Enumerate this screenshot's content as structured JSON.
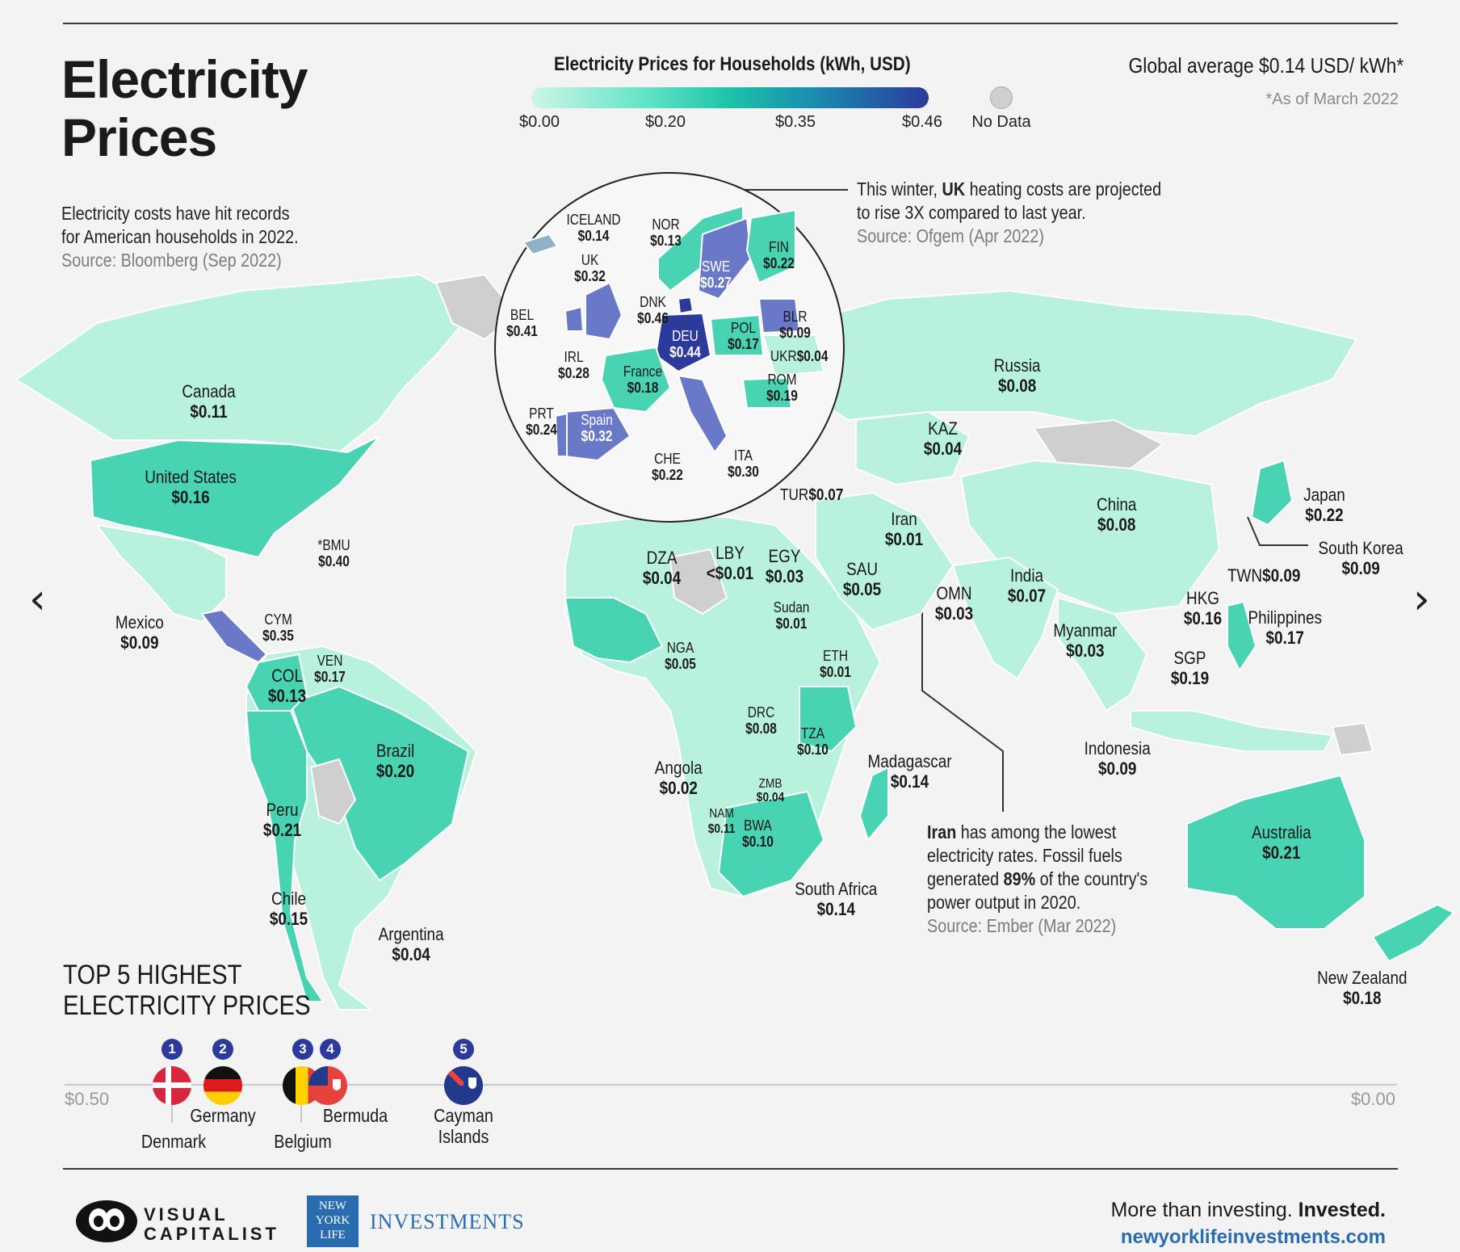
{
  "title": "Electricity Prices",
  "legend": {
    "title": "Electricity Prices for Households (kWh, USD)",
    "ticks": [
      "$0.00",
      "$0.20",
      "$0.35",
      "$0.46"
    ],
    "no_data": "No Data",
    "colors": {
      "low": "#cdf6e7",
      "mid_low": "#5fe2c4",
      "mid": "#1cc3a7",
      "mid_high": "#1a8fb0",
      "high": "#2b3a9b",
      "no_data": "#cfcfcf"
    }
  },
  "global_avg": "Global average $0.14 USD/ kWh*",
  "as_of": "*As of March 2022",
  "notes": {
    "us": {
      "line1": "Electricity costs have hit records",
      "line2": "for American households in 2022.",
      "source": "Source: Bloomberg (Sep 2022)"
    },
    "uk": {
      "line1_pre": "This winter, ",
      "line1_bold": "UK",
      "line1_post": " heating costs are projected",
      "line2": "to rise 3X compared to last year.",
      "source": "Source: Ofgem (Apr 2022)"
    },
    "iran": {
      "l1_bold": "Iran",
      "l1_post": " has among the lowest",
      "l2": "electricity rates. Fossil fuels",
      "l3_pre": "generated ",
      "l3_bold": "89%",
      "l3_post": " of the country's",
      "l4": "power output in 2020.",
      "source": "Source:  Ember (Mar 2022)"
    }
  },
  "countries": {
    "canada": {
      "name": "Canada",
      "price": "$0.11"
    },
    "us": {
      "name": "United States",
      "price": "$0.16"
    },
    "bmu": {
      "name": "*BMU",
      "price": "$0.40"
    },
    "mexico": {
      "name": "Mexico",
      "price": "$0.09"
    },
    "cym": {
      "name": "CYM",
      "price": "$0.35"
    },
    "col": {
      "name": "COL",
      "price": "$0.13"
    },
    "ven": {
      "name": "VEN",
      "price": "$0.17"
    },
    "brazil": {
      "name": "Brazil",
      "price": "$0.20"
    },
    "peru": {
      "name": "Peru",
      "price": "$0.21"
    },
    "chile": {
      "name": "Chile",
      "price": "$0.15"
    },
    "argentina": {
      "name": "Argentina",
      "price": "$0.04"
    },
    "russia": {
      "name": "Russia",
      "price": "$0.08"
    },
    "kaz": {
      "name": "KAZ",
      "price": "$0.04"
    },
    "china": {
      "name": "China",
      "price": "$0.08"
    },
    "japan": {
      "name": "Japan",
      "price": "$0.22"
    },
    "skorea": {
      "name": "South Korea",
      "price": "$0.09"
    },
    "twn": {
      "name": "TWN",
      "price": "$0.09"
    },
    "hkg": {
      "name": "HKG",
      "price": "$0.16"
    },
    "philippines": {
      "name": "Philippines",
      "price": "$0.17"
    },
    "india": {
      "name": "India",
      "price": "$0.07"
    },
    "myanmar": {
      "name": "Myanmar",
      "price": "$0.03"
    },
    "sgp": {
      "name": "SGP",
      "price": "$0.19"
    },
    "indonesia": {
      "name": "Indonesia",
      "price": "$0.09"
    },
    "australia": {
      "name": "Australia",
      "price": "$0.21"
    },
    "nz": {
      "name": "New Zealand",
      "price": "$0.18"
    },
    "iran": {
      "name": "Iran",
      "price": "$0.01"
    },
    "tur": {
      "name": "TUR",
      "price": "$0.07"
    },
    "sau": {
      "name": "SAU",
      "price": "$0.05"
    },
    "omn": {
      "name": "OMN",
      "price": "$0.03"
    },
    "dza": {
      "name": "DZA",
      "price": "$0.04"
    },
    "lby": {
      "name": "LBY",
      "price": "<$0.01"
    },
    "egy": {
      "name": "EGY",
      "price": "$0.03"
    },
    "sudan": {
      "name": "Sudan",
      "price": "$0.01"
    },
    "eth": {
      "name": "ETH",
      "price": "$0.01"
    },
    "nga": {
      "name": "NGA",
      "price": "$0.05"
    },
    "drc": {
      "name": "DRC",
      "price": "$0.08"
    },
    "tza": {
      "name": "TZA",
      "price": "$0.10"
    },
    "angola": {
      "name": "Angola",
      "price": "$0.02"
    },
    "zmb": {
      "name": "ZMB",
      "price": "$0.04"
    },
    "nam": {
      "name": "NAM",
      "price": "$0.11"
    },
    "bwa": {
      "name": "BWA",
      "price": "$0.10"
    },
    "safrica": {
      "name": "South Africa",
      "price": "$0.14"
    },
    "madagascar": {
      "name": "Madagascar",
      "price": "$0.14"
    },
    "iceland": {
      "name": "ICELAND",
      "price": "$0.14"
    },
    "nor": {
      "name": "NOR",
      "price": "$0.13"
    },
    "fin": {
      "name": "FIN",
      "price": "$0.22"
    },
    "swe": {
      "name": "SWE",
      "price": "$0.27"
    },
    "uk": {
      "name": "UK",
      "price": "$0.32"
    },
    "dnk": {
      "name": "DNK",
      "price": "$0.46"
    },
    "bel": {
      "name": "BEL",
      "price": "$0.41"
    },
    "deu": {
      "name": "DEU",
      "price": "$0.44"
    },
    "blr": {
      "name": "BLR",
      "price": "$0.09"
    },
    "pol": {
      "name": "POL",
      "price": "$0.17"
    },
    "irl": {
      "name": "IRL",
      "price": "$0.28"
    },
    "ukr": {
      "name": "UKR",
      "price": "$0.04"
    },
    "france": {
      "name": "France",
      "price": "$0.18"
    },
    "rom": {
      "name": "ROM",
      "price": "$0.19"
    },
    "prt": {
      "name": "PRT",
      "price": "$0.24"
    },
    "spain": {
      "name": "Spain",
      "price": "$0.32"
    },
    "che": {
      "name": "CHE",
      "price": "$0.22"
    },
    "ita": {
      "name": "ITA",
      "price": "$0.30"
    }
  },
  "top5": {
    "title_l1": "TOP 5 HIGHEST",
    "title_l2": "ELECTRICITY PRICES",
    "axis_left": "$0.50",
    "axis_right": "$0.00",
    "items": [
      {
        "rank": "1",
        "name": "Denmark",
        "value": 0.46
      },
      {
        "rank": "2",
        "name": "Germany",
        "value": 0.44
      },
      {
        "rank": "3",
        "name": "Belgium",
        "value": 0.41
      },
      {
        "rank": "4",
        "name": "Bermuda",
        "value": 0.4
      },
      {
        "rank": "5",
        "name": "Cayman Islands",
        "value": 0.35
      }
    ]
  },
  "footer": {
    "vc_l1": "VISUAL",
    "vc_l2": "CAPITALIST",
    "nyl_logo": "NEW YORK LIFE",
    "nyl": "INVESTMENTS",
    "tag_pre": "More than investing. ",
    "tag_bold": "Invested.",
    "url": "newyorklifeinvestments.com"
  }
}
